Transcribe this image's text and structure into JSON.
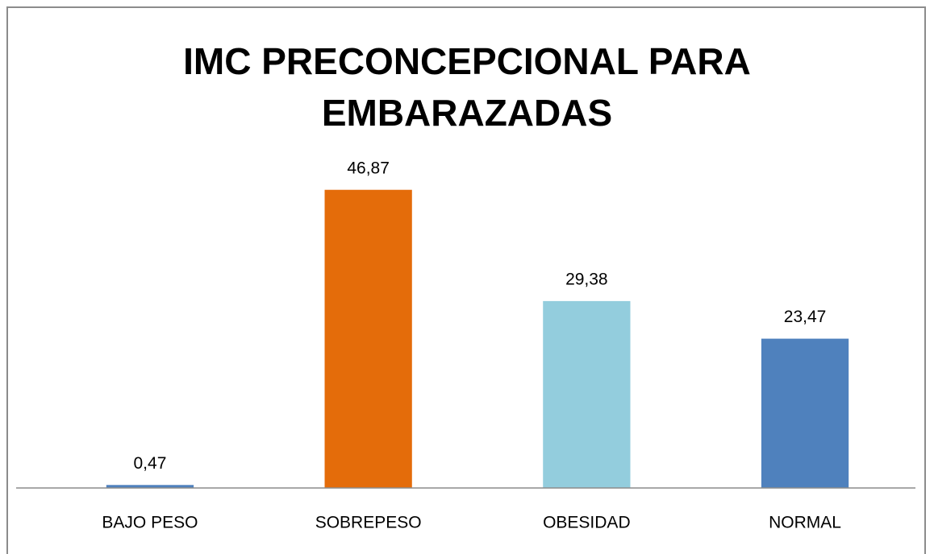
{
  "chart_data": {
    "type": "bar",
    "title": "IMC PRECONCEPCIONAL PARA EMBARAZADAS",
    "categories": [
      "BAJO PESO",
      "SOBREPESO",
      "OBESIDAD",
      "NORMAL"
    ],
    "values": [
      0.47,
      46.87,
      29.38,
      23.47
    ],
    "value_labels": [
      "0,47",
      "46,87",
      "29,38",
      "23,47"
    ],
    "colors": [
      "#4f81bd",
      "#e46c0a",
      "#93cddd",
      "#4f81bd"
    ],
    "ylim": [
      0,
      50
    ]
  }
}
